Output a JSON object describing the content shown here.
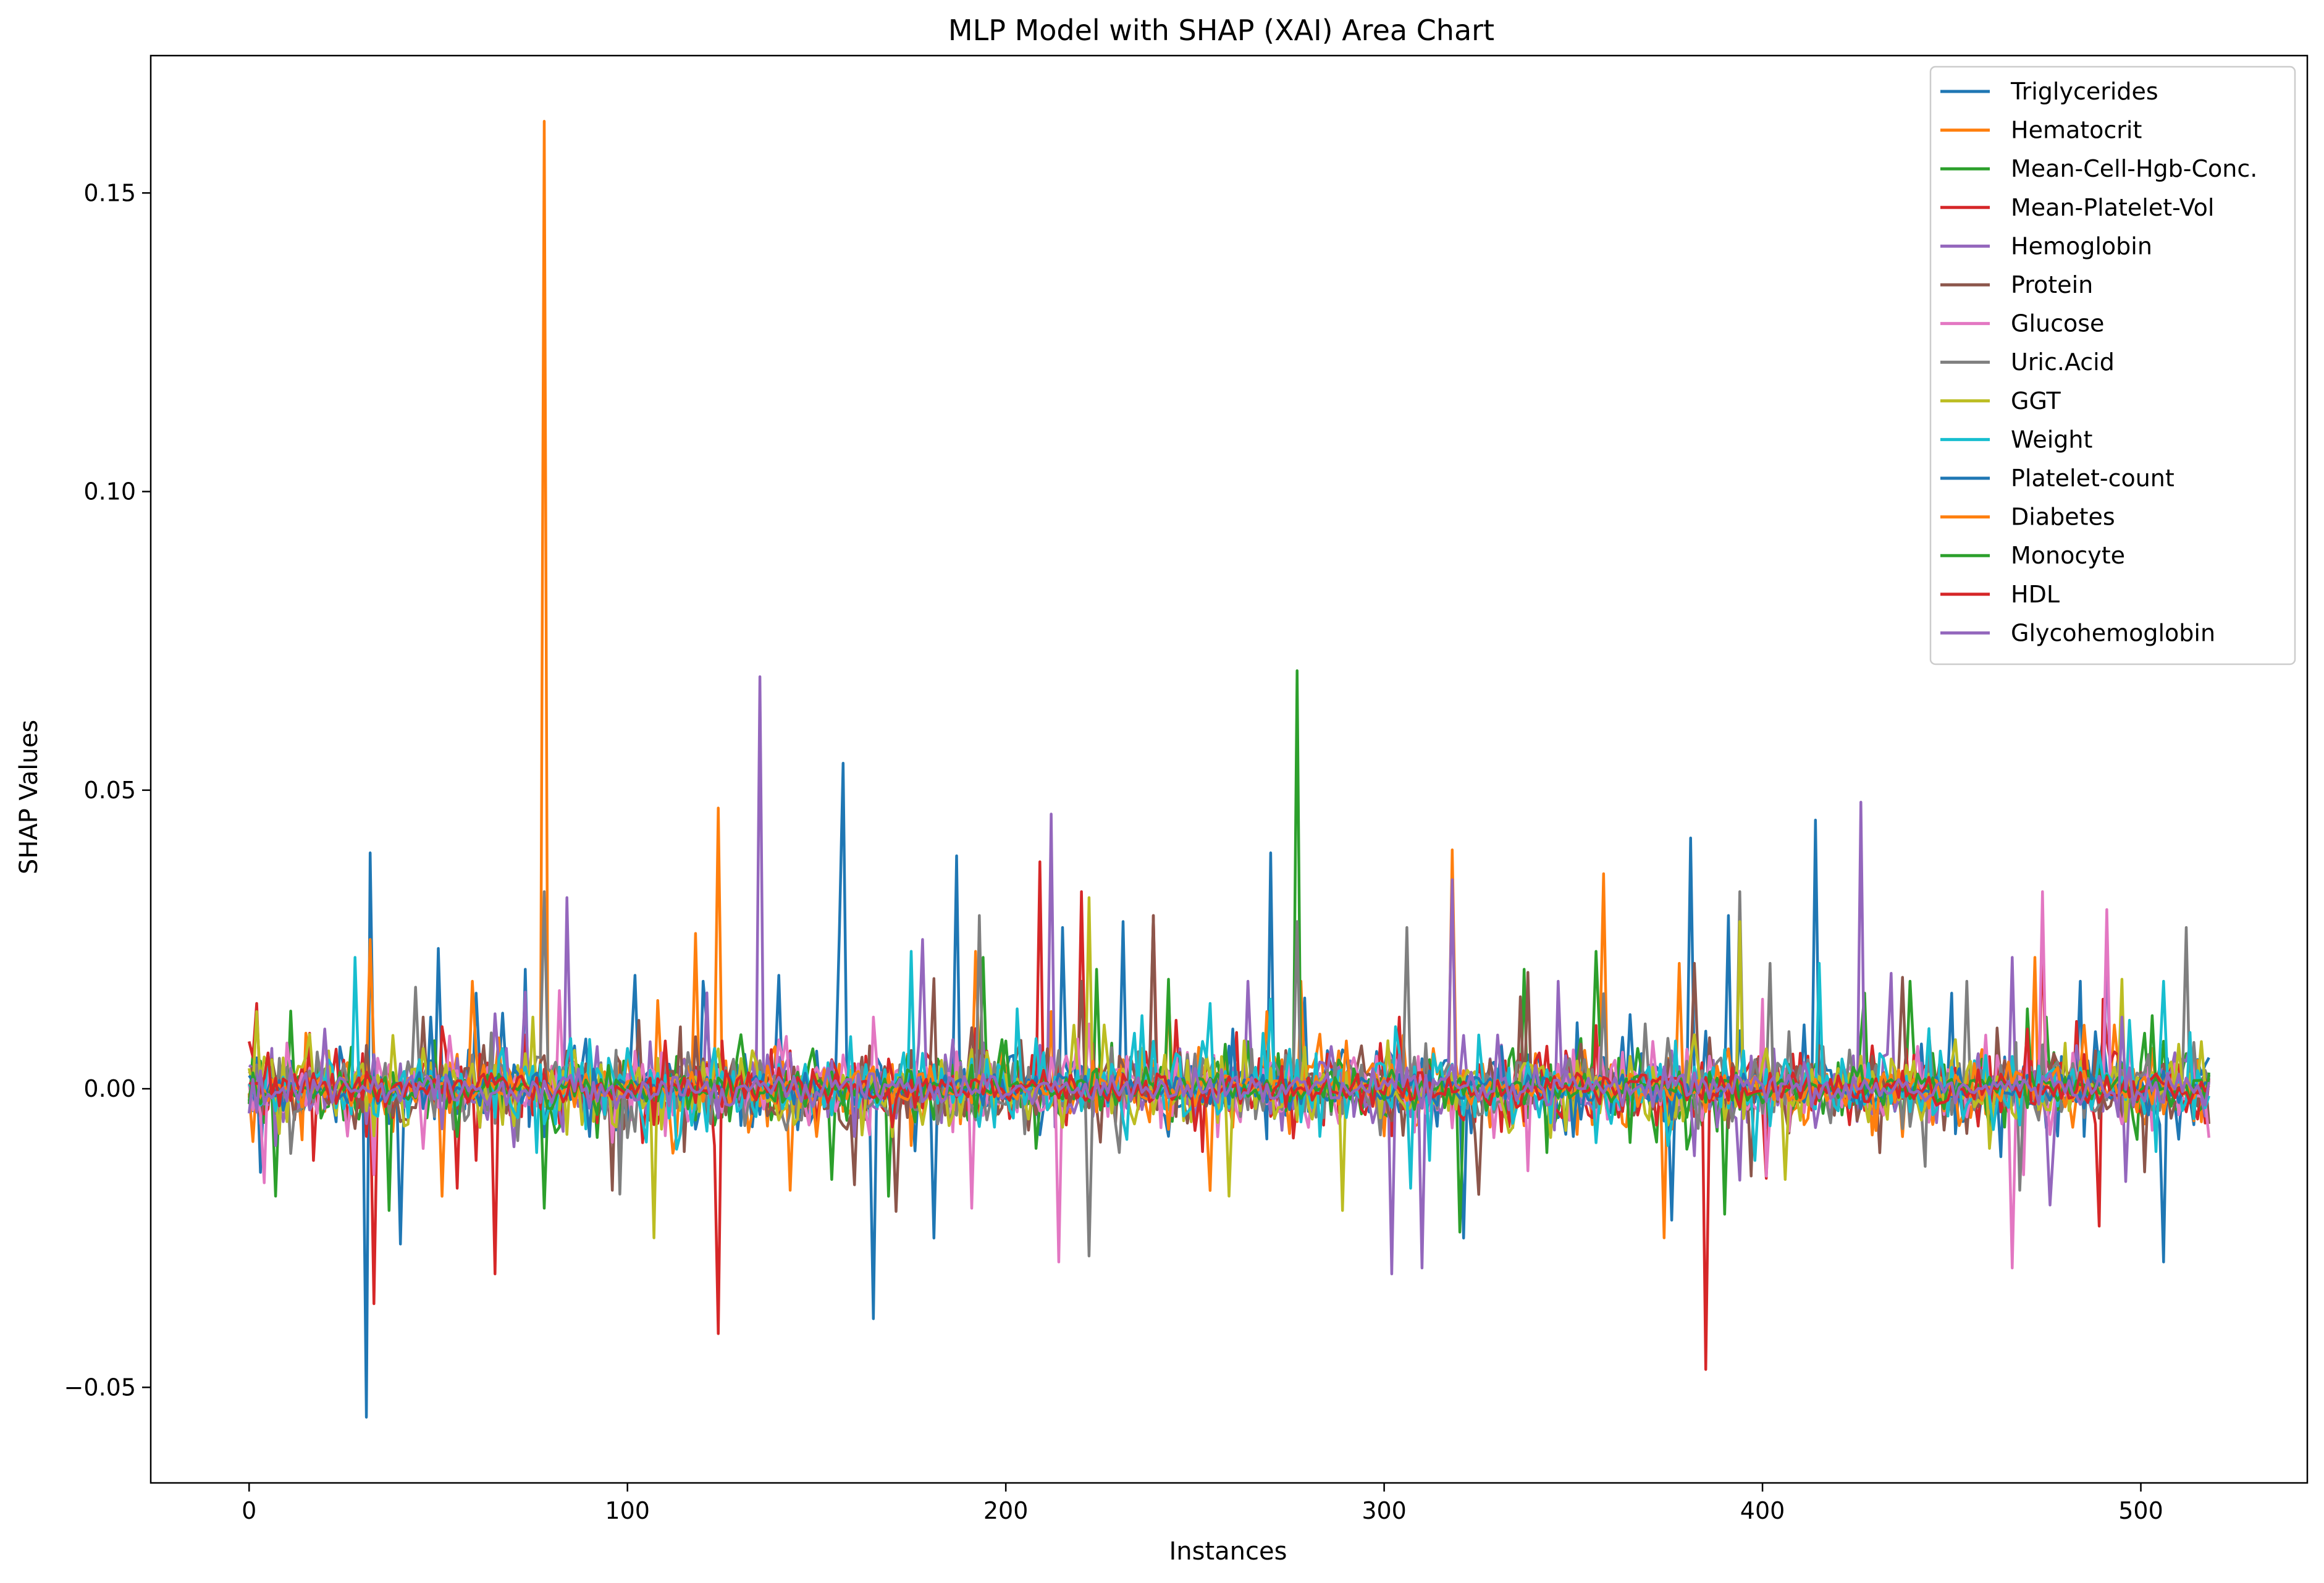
{
  "chart_data": {
    "type": "line",
    "title": "MLP Model with SHAP (XAI) Area Chart",
    "xlabel": "Instances",
    "ylabel": "SHAP Values",
    "xlim": [
      -26,
      544
    ],
    "ylim": [
      -0.066,
      0.173
    ],
    "xticks": [
      0,
      100,
      200,
      300,
      400,
      500
    ],
    "yticks": [
      -0.05,
      0.0,
      0.05,
      0.1,
      0.15
    ],
    "ytick_labels": [
      "−0.05",
      "0.00",
      "0.05",
      "0.10",
      "0.15"
    ],
    "grid": false,
    "legend_position": "top-right",
    "n_points": 519,
    "series": [
      {
        "name": "Triglycerides",
        "color": "#1f77b4",
        "spikes": [
          [
            31,
            -0.055
          ],
          [
            32,
            0.0395
          ],
          [
            3,
            -0.014
          ],
          [
            40,
            -0.026
          ],
          [
            50,
            0.0235
          ],
          [
            157,
            0.0545
          ],
          [
            156,
            0.026
          ],
          [
            165,
            -0.0385
          ],
          [
            187,
            0.039
          ],
          [
            270,
            0.0395
          ],
          [
            381,
            0.042
          ],
          [
            414,
            0.045
          ],
          [
            506,
            -0.029
          ],
          [
            60,
            0.016
          ],
          [
            73,
            0.02
          ],
          [
            102,
            0.019
          ],
          [
            120,
            0.018
          ],
          [
            140,
            0.019
          ],
          [
            181,
            -0.025
          ],
          [
            215,
            0.027
          ],
          [
            231,
            0.028
          ],
          [
            321,
            -0.025
          ],
          [
            376,
            -0.022
          ],
          [
            391,
            0.029
          ],
          [
            450,
            0.016
          ],
          [
            484,
            0.018
          ]
        ]
      },
      {
        "name": "Hematocrit",
        "color": "#ff7f0e",
        "spikes": [
          [
            78,
            0.162
          ],
          [
            79,
            -0.005
          ],
          [
            124,
            0.047
          ],
          [
            59,
            0.018
          ],
          [
            51,
            -0.018
          ],
          [
            118,
            0.026
          ],
          [
            143,
            -0.017
          ],
          [
            192,
            0.023
          ],
          [
            243,
            0.015
          ],
          [
            278,
            0.018
          ],
          [
            318,
            0.04
          ],
          [
            358,
            0.036
          ],
          [
            378,
            0.021
          ],
          [
            472,
            0.022
          ],
          [
            32,
            0.025
          ]
        ]
      },
      {
        "name": "Mean-Cell-Hgb-Conc.",
        "color": "#2ca02c",
        "spikes": [
          [
            277,
            0.07
          ],
          [
            78,
            -0.02
          ],
          [
            11,
            0.013
          ],
          [
            169,
            -0.018
          ],
          [
            194,
            0.022
          ],
          [
            224,
            0.02
          ],
          [
            320,
            -0.024
          ],
          [
            337,
            0.02
          ],
          [
            356,
            0.023
          ],
          [
            390,
            -0.021
          ],
          [
            427,
            0.016
          ],
          [
            439,
            0.018
          ],
          [
            475,
            0.012
          ]
        ]
      },
      {
        "name": "Mean-Platelet-Vol",
        "color": "#d62728",
        "spikes": [
          [
            124,
            -0.041
          ],
          [
            385,
            -0.047
          ],
          [
            33,
            -0.036
          ],
          [
            65,
            -0.031
          ],
          [
            209,
            0.038
          ],
          [
            220,
            0.033
          ],
          [
            239,
            0.029
          ],
          [
            474,
            0.025
          ],
          [
            489,
            -0.023
          ],
          [
            490,
            0.015
          ],
          [
            401,
            -0.015
          ],
          [
            304,
            0.012
          ],
          [
            17,
            -0.012
          ]
        ]
      },
      {
        "name": "Hemoglobin",
        "color": "#9467bd",
        "spikes": [
          [
            135,
            0.069
          ],
          [
            212,
            0.046
          ],
          [
            84,
            0.032
          ],
          [
            302,
            -0.031
          ],
          [
            310,
            -0.03
          ],
          [
            318,
            0.035
          ],
          [
            426,
            0.048
          ],
          [
            491,
            0.024
          ],
          [
            264,
            0.018
          ],
          [
            178,
            0.025
          ],
          [
            346,
            0.018
          ],
          [
            466,
            0.022
          ]
        ]
      },
      {
        "name": "Protein",
        "color": "#8c564b",
        "spikes": [
          [
            239,
            0.029
          ],
          [
            382,
            0.021
          ],
          [
            96,
            -0.017
          ],
          [
            220,
            0.018
          ],
          [
            46,
            0.012
          ]
        ]
      },
      {
        "name": "Glucose",
        "color": "#e377c2",
        "spikes": [
          [
            214,
            -0.029
          ],
          [
            466,
            -0.03
          ],
          [
            474,
            0.033
          ],
          [
            491,
            0.03
          ],
          [
            191,
            -0.02
          ],
          [
            400,
            0.015
          ],
          [
            165,
            0.012
          ]
        ]
      },
      {
        "name": "Uric.Acid",
        "color": "#7f7f7f",
        "spikes": [
          [
            222,
            -0.028
          ],
          [
            306,
            0.027
          ],
          [
            394,
            0.033
          ],
          [
            402,
            0.021
          ],
          [
            512,
            0.027
          ],
          [
            468,
            -0.017
          ],
          [
            454,
            0.018
          ],
          [
            44,
            0.017
          ],
          [
            78,
            0.033
          ],
          [
            193,
            0.029
          ],
          [
            277,
            0.028
          ],
          [
            443,
            -0.013
          ]
        ]
      },
      {
        "name": "GGT",
        "color": "#bcbd22",
        "spikes": [
          [
            222,
            0.032
          ],
          [
            394,
            0.028
          ],
          [
            75,
            0.012
          ],
          [
            395,
            -0.005
          ]
        ]
      },
      {
        "name": "Weight",
        "color": "#17becf",
        "spikes": [
          [
            28,
            0.022
          ],
          [
            175,
            0.023
          ],
          [
            415,
            0.021
          ],
          [
            506,
            0.018
          ],
          [
            398,
            -0.012
          ],
          [
            270,
            0.015
          ]
        ]
      },
      {
        "name": "Platelet-count",
        "color": "#1f77b4",
        "spikes": [
          [
            48,
            0.012
          ],
          [
            90,
            -0.008
          ],
          [
            260,
            0.01
          ],
          [
            350,
            -0.008
          ]
        ]
      },
      {
        "name": "Diabetes",
        "color": "#ff7f0e",
        "spikes": [
          [
            150,
            -0.008
          ],
          [
            290,
            0.008
          ],
          [
            430,
            -0.007
          ]
        ]
      },
      {
        "name": "Monocyte",
        "color": "#2ca02c",
        "spikes": [
          [
            55,
            -0.008
          ],
          [
            200,
            0.008
          ],
          [
            365,
            -0.009
          ]
        ]
      },
      {
        "name": "HDL",
        "color": "#d62728",
        "spikes": [
          [
            5,
            0.006
          ],
          [
            110,
            0.008
          ],
          [
            250,
            -0.007
          ],
          [
            470,
            0.01
          ]
        ]
      },
      {
        "name": "Glycohemoglobin",
        "color": "#9467bd",
        "spikes": [
          [
            20,
            0.01
          ],
          [
            160,
            -0.008
          ],
          [
            330,
            0.009
          ],
          [
            495,
            0.012
          ]
        ]
      }
    ]
  }
}
